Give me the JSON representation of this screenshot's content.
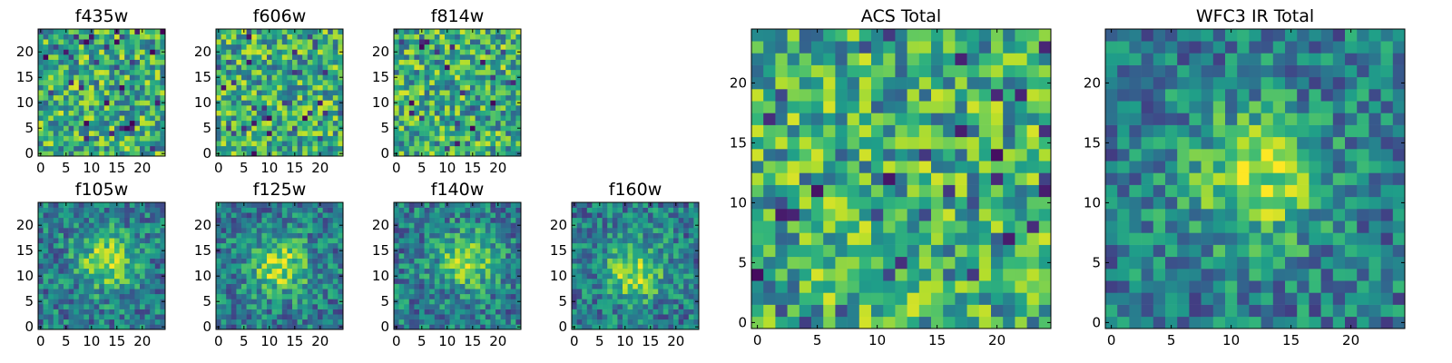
{
  "chart_data": [
    {
      "type": "heatmap",
      "title": "f435w",
      "grid_size": 25,
      "xlim": [
        -0.5,
        24.5
      ],
      "ylim": [
        -0.5,
        24.5
      ],
      "xticks": [
        0,
        5,
        10,
        15,
        20
      ],
      "yticks": [
        0,
        5,
        10,
        15,
        20
      ],
      "colormap": "viridis",
      "pattern": "noise",
      "grid": false
    },
    {
      "type": "heatmap",
      "title": "f606w",
      "grid_size": 25,
      "xlim": [
        -0.5,
        24.5
      ],
      "ylim": [
        -0.5,
        24.5
      ],
      "xticks": [
        0,
        5,
        10,
        15,
        20
      ],
      "yticks": [
        0,
        5,
        10,
        15,
        20
      ],
      "colormap": "viridis",
      "pattern": "noise",
      "grid": false
    },
    {
      "type": "heatmap",
      "title": "f814w",
      "grid_size": 25,
      "xlim": [
        -0.5,
        24.5
      ],
      "ylim": [
        -0.5,
        24.5
      ],
      "xticks": [
        0,
        5,
        10,
        15,
        20
      ],
      "yticks": [
        0,
        5,
        10,
        15,
        20
      ],
      "colormap": "viridis",
      "pattern": "noise",
      "grid": false
    },
    {
      "type": "heatmap",
      "title": "f105w",
      "grid_size": 25,
      "xlim": [
        -0.5,
        24.5
      ],
      "ylim": [
        -0.5,
        24.5
      ],
      "xticks": [
        0,
        5,
        10,
        15,
        20
      ],
      "yticks": [
        0,
        5,
        10,
        15,
        20
      ],
      "colormap": "viridis",
      "pattern": "source",
      "source_center": [
        13,
        13
      ],
      "grid": false
    },
    {
      "type": "heatmap",
      "title": "f125w",
      "grid_size": 25,
      "xlim": [
        -0.5,
        24.5
      ],
      "ylim": [
        -0.5,
        24.5
      ],
      "xticks": [
        0,
        5,
        10,
        15,
        20
      ],
      "yticks": [
        0,
        5,
        10,
        15,
        20
      ],
      "colormap": "viridis",
      "pattern": "source",
      "source_center": [
        12,
        12
      ],
      "grid": false
    },
    {
      "type": "heatmap",
      "title": "f140w",
      "grid_size": 25,
      "xlim": [
        -0.5,
        24.5
      ],
      "ylim": [
        -0.5,
        24.5
      ],
      "xticks": [
        0,
        5,
        10,
        15,
        20
      ],
      "yticks": [
        0,
        5,
        10,
        15,
        20
      ],
      "colormap": "viridis",
      "pattern": "source",
      "source_center": [
        14,
        13
      ],
      "grid": false
    },
    {
      "type": "heatmap",
      "title": "f160w",
      "grid_size": 25,
      "xlim": [
        -0.5,
        24.5
      ],
      "ylim": [
        -0.5,
        24.5
      ],
      "xticks": [
        0,
        5,
        10,
        15,
        20
      ],
      "yticks": [
        0,
        5,
        10,
        15,
        20
      ],
      "colormap": "viridis",
      "pattern": "source",
      "source_center": [
        12,
        11
      ],
      "grid": false
    },
    {
      "type": "heatmap",
      "title": "ACS Total",
      "grid_size": 25,
      "xlim": [
        -0.5,
        24.5
      ],
      "ylim": [
        -0.5,
        24.5
      ],
      "xticks": [
        0,
        5,
        10,
        15,
        20
      ],
      "yticks": [
        0,
        5,
        10,
        15,
        20
      ],
      "colormap": "viridis",
      "pattern": "noise",
      "grid": false
    },
    {
      "type": "heatmap",
      "title": "WFC3 IR Total",
      "grid_size": 25,
      "xlim": [
        -0.5,
        24.5
      ],
      "ylim": [
        -0.5,
        24.5
      ],
      "xticks": [
        0,
        5,
        10,
        15,
        20
      ],
      "yticks": [
        0,
        5,
        10,
        15,
        20
      ],
      "colormap": "viridis",
      "pattern": "source",
      "source_center": [
        12,
        12
      ],
      "grid": false
    }
  ]
}
